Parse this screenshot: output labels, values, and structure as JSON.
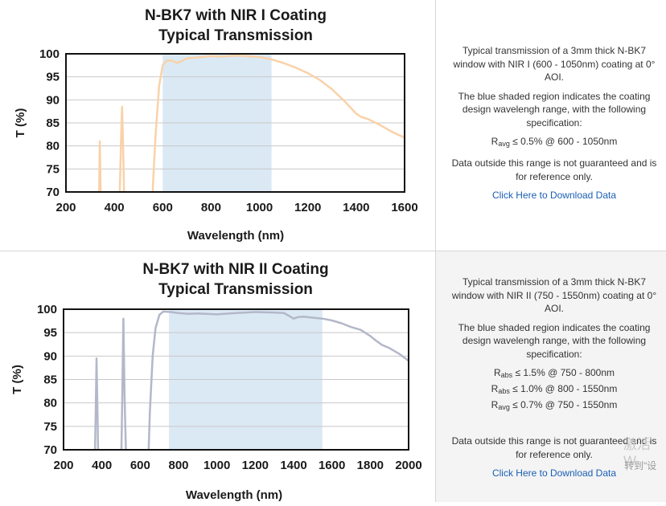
{
  "chart_data": [
    {
      "type": "line",
      "title": "N-BK7 with NIR I Coating",
      "subtitle": "Typical Transmission",
      "xlabel": "Wavelength (nm)",
      "ylabel": "T (%)",
      "xlim": [
        200,
        1600
      ],
      "ylim": [
        70,
        100
      ],
      "xticks": [
        200,
        400,
        600,
        800,
        1000,
        1200,
        1400,
        1600
      ],
      "yticks": [
        70,
        75,
        80,
        85,
        90,
        95,
        100
      ],
      "grid": true,
      "shaded_region": [
        600,
        1050
      ],
      "series_color": "#f9d2a8",
      "shade_color": "#dbe9f5",
      "segments": [
        [
          [
            336,
            65
          ],
          [
            340,
            81
          ],
          [
            345,
            65
          ]
        ],
        [
          [
            420,
            65
          ],
          [
            428,
            82
          ],
          [
            432,
            88.5
          ],
          [
            436,
            80
          ],
          [
            442,
            65
          ]
        ],
        [
          [
            555,
            65
          ],
          [
            560,
            72
          ],
          [
            570,
            82
          ],
          [
            585,
            93
          ],
          [
            600,
            97.5
          ],
          [
            615,
            98.5
          ],
          [
            640,
            98.5
          ],
          [
            660,
            98
          ],
          [
            700,
            99
          ],
          [
            760,
            99.3
          ],
          [
            800,
            99.5
          ],
          [
            850,
            99.4
          ],
          [
            900,
            99.6
          ],
          [
            950,
            99.5
          ],
          [
            1000,
            99.3
          ],
          [
            1050,
            98.8
          ],
          [
            1100,
            98
          ],
          [
            1150,
            97
          ],
          [
            1200,
            95.8
          ],
          [
            1250,
            94.3
          ],
          [
            1300,
            92.3
          ],
          [
            1350,
            89.8
          ],
          [
            1400,
            87
          ],
          [
            1420,
            86.3
          ],
          [
            1450,
            85.8
          ],
          [
            1500,
            84.5
          ],
          [
            1550,
            83
          ],
          [
            1600,
            81.8
          ]
        ]
      ]
    },
    {
      "type": "line",
      "title": "N-BK7 with NIR II Coating",
      "subtitle": "Typical Transmission",
      "xlabel": "Wavelength (nm)",
      "ylabel": "T (%)",
      "xlim": [
        200,
        2000
      ],
      "ylim": [
        70,
        100
      ],
      "xticks": [
        200,
        400,
        600,
        800,
        1000,
        1200,
        1400,
        1600,
        1800,
        2000
      ],
      "yticks": [
        70,
        75,
        80,
        85,
        90,
        95,
        100
      ],
      "grid": true,
      "shaded_region": [
        750,
        1550
      ],
      "series_color": "#b3b8c9",
      "shade_color": "#dbe9f5",
      "segments": [
        [
          [
            362,
            65
          ],
          [
            368,
            78
          ],
          [
            372,
            89.5
          ],
          [
            377,
            78
          ],
          [
            382,
            65
          ]
        ],
        [
          [
            500,
            65
          ],
          [
            506,
            80
          ],
          [
            512,
            98
          ],
          [
            518,
            82
          ],
          [
            528,
            65
          ]
        ],
        [
          [
            640,
            65
          ],
          [
            650,
            78
          ],
          [
            665,
            90
          ],
          [
            680,
            96
          ],
          [
            700,
            98.8
          ],
          [
            720,
            99.5
          ],
          [
            760,
            99.4
          ],
          [
            800,
            99.2
          ],
          [
            850,
            99
          ],
          [
            900,
            99.1
          ],
          [
            1000,
            98.9
          ],
          [
            1100,
            99.2
          ],
          [
            1200,
            99.4
          ],
          [
            1300,
            99.3
          ],
          [
            1350,
            99.2
          ],
          [
            1380,
            98.5
          ],
          [
            1400,
            98
          ],
          [
            1420,
            98.3
          ],
          [
            1450,
            98.4
          ],
          [
            1500,
            98.2
          ],
          [
            1550,
            98
          ],
          [
            1600,
            97.6
          ],
          [
            1650,
            97
          ],
          [
            1700,
            96.2
          ],
          [
            1750,
            95.6
          ],
          [
            1800,
            94.3
          ],
          [
            1830,
            93.3
          ],
          [
            1860,
            92.4
          ],
          [
            1900,
            91.7
          ],
          [
            1950,
            90.5
          ],
          [
            2000,
            89
          ]
        ]
      ]
    }
  ],
  "info": [
    {
      "description": "Typical transmission of a 3mm thick N-BK7 window with NIR I (600 - 1050nm) coating at 0° AOI.",
      "shade_note": "The blue shaded region indicates the coating design wavelengh range, with the following specification:",
      "specs": [
        {
          "sym": "R",
          "sub": "avg",
          "text": " ≤ 0.5% @ 600 - 1050nm"
        }
      ],
      "outside_note": "Data outside this range is not guaranteed and is for reference only.",
      "link": "Click Here to Download Data"
    },
    {
      "description": "Typical transmission of a 3mm thick N-BK7 window with NIR II (750 - 1550nm) coating at 0° AOI.",
      "shade_note": "The blue shaded region indicates the coating design wavelengh range, with the following specification:",
      "specs": [
        {
          "sym": "R",
          "sub": "abs",
          "text": " ≤ 1.5% @ 750 - 800nm"
        },
        {
          "sym": "R",
          "sub": "abs",
          "text": " ≤ 1.0% @ 800 - 1550nm"
        },
        {
          "sym": "R",
          "sub": "avg",
          "text": " ≤ 0.7% @ 750 - 1550nm"
        }
      ],
      "outside_note": "Data outside this range is not guaranteed and is for reference only.",
      "link": "Click Here to Download Data"
    }
  ],
  "watermark": {
    "line1": "激活 W",
    "line2": "转到\"设"
  }
}
